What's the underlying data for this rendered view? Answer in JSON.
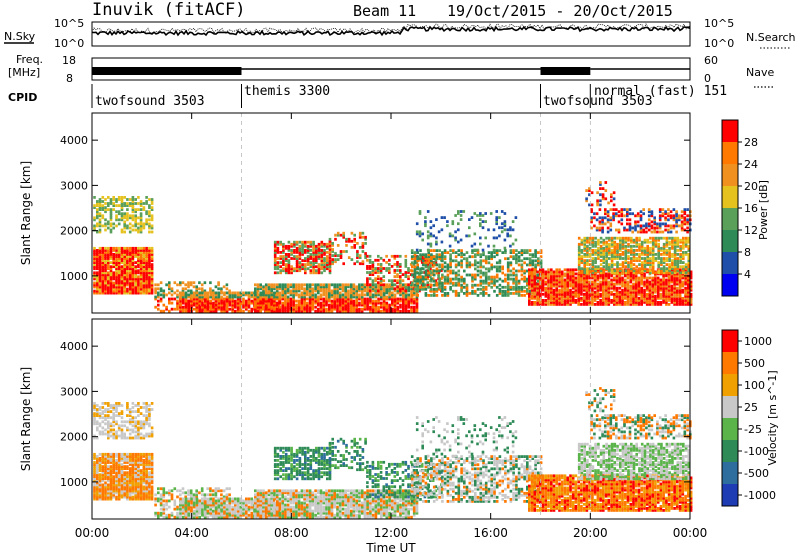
{
  "header": {
    "title": "Inuvik (fitACF)",
    "beam": "Beam 11",
    "dates": "19/Oct/2015 - 20/Oct/2015"
  },
  "top_panels": {
    "nsky_label": "N.Sky",
    "nsky_ticks": [
      "10^5",
      "10^0"
    ],
    "nsearch_label": "N.Search",
    "nsearch_ticks": [
      "10^5",
      "10^0"
    ],
    "freq_label": "Freq.",
    "freq_unit": "[MHz]",
    "freq_ticks": [
      "18",
      "8"
    ],
    "nave_label": "Nave",
    "nave_ticks": [
      "60",
      "0"
    ],
    "cpid_label": "CPID",
    "cpid_segments": [
      {
        "label": "twofsound 3503",
        "start_h": 0
      },
      {
        "label": "themis 3300",
        "start_h": 6
      },
      {
        "label": "twofsound 3503",
        "start_h": 18
      },
      {
        "label": "normal (fast) 151",
        "start_h": 20
      }
    ]
  },
  "chart_data": [
    {
      "type": "heatmap",
      "name": "power",
      "ylabel": "Slant Range [km]",
      "ylim": [
        180,
        4600
      ],
      "yticks": [
        "1000",
        "2000",
        "3000",
        "4000"
      ],
      "xlim_hours": [
        0,
        24
      ],
      "colorbar_label": "Power [dB]",
      "colorbar_ticks": [
        "28",
        "24",
        "20",
        "16",
        "12",
        "8",
        "4"
      ],
      "colors": [
        "#0000f0",
        "#1f4fa8",
        "#2e8b57",
        "#5aa05a",
        "#e6c21e",
        "#f0901e",
        "#ff7800",
        "#ff0000"
      ]
    },
    {
      "type": "heatmap",
      "name": "velocity",
      "ylabel": "Slant Range [km]",
      "ylim": [
        180,
        4600
      ],
      "yticks": [
        "1000",
        "2000",
        "3000",
        "4000"
      ],
      "xlim_hours": [
        0,
        24
      ],
      "colorbar_label": "Velocity [m s^-1]",
      "colorbar_ticks": [
        "1000",
        "500",
        "100",
        "25",
        "-25",
        "-100",
        "-500",
        "-1000"
      ],
      "colors": [
        "#1e3cb4",
        "#2e6e9e",
        "#2e8b57",
        "#5ab44a",
        "#c8c8c8",
        "#f0a000",
        "#ff7800",
        "#ff0000"
      ]
    }
  ],
  "xaxis": {
    "ticks": [
      "00:00",
      "04:00",
      "08:00",
      "12:00",
      "16:00",
      "20:00",
      "00:00"
    ],
    "label": "Time UT"
  }
}
